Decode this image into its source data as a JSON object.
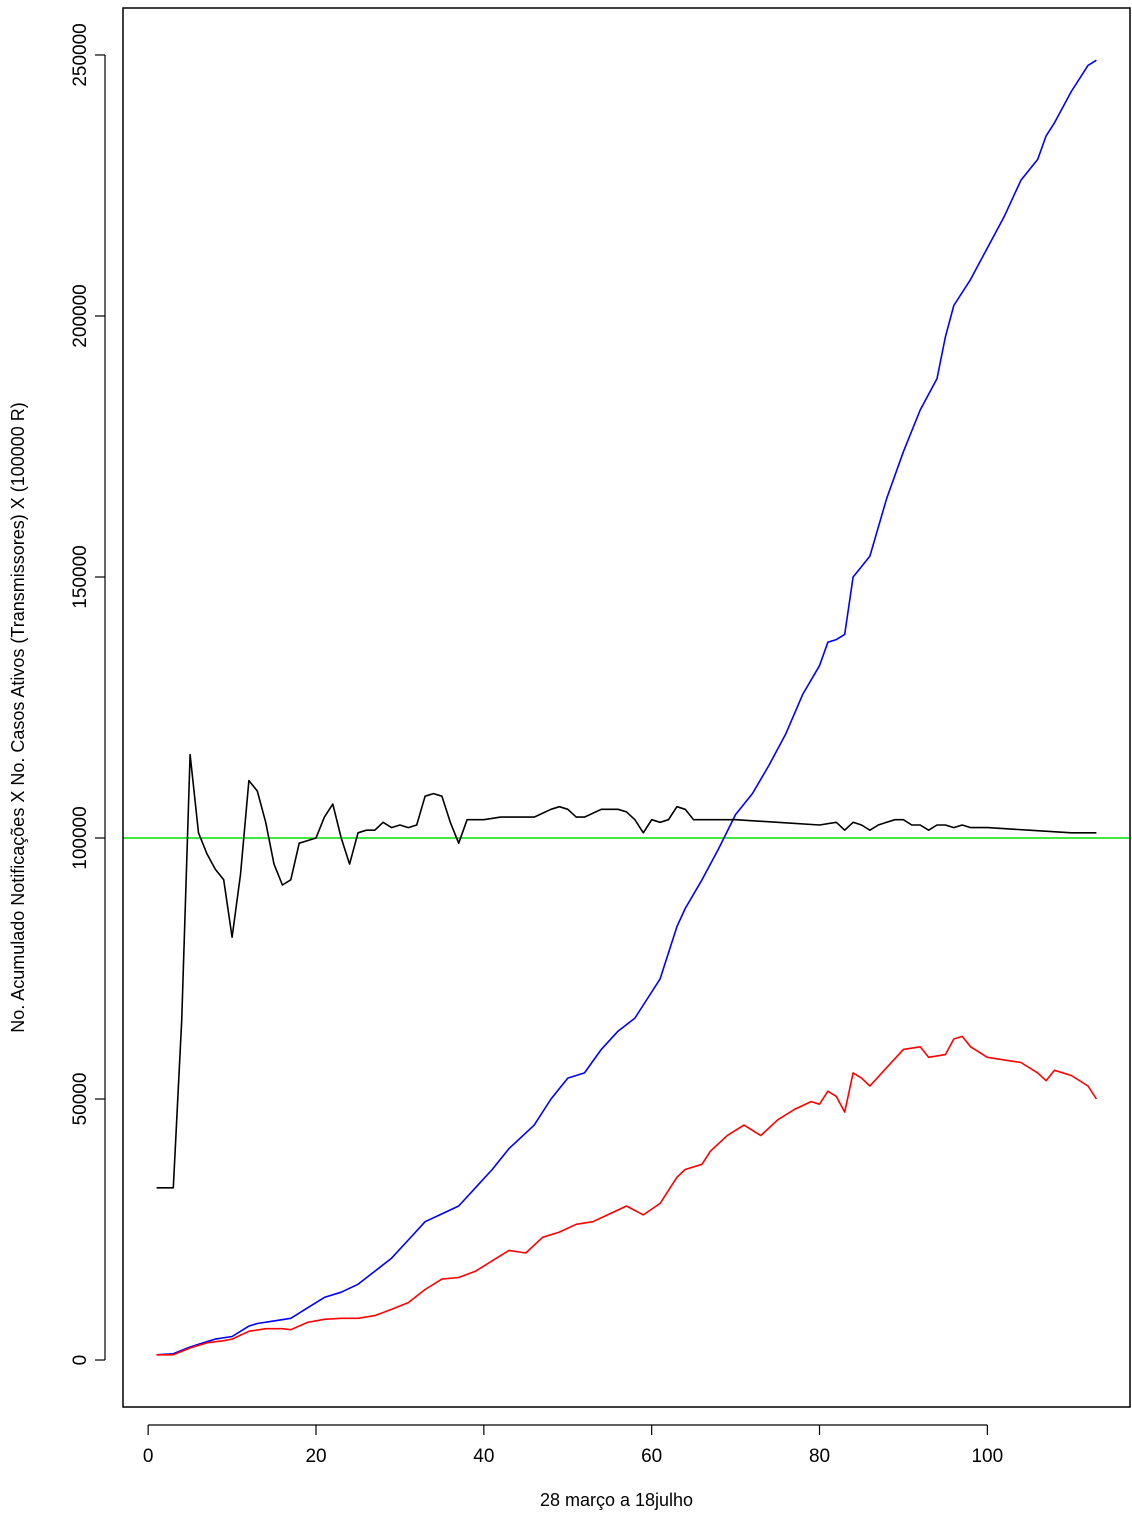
{
  "chart_data": {
    "type": "line",
    "title": "",
    "xlabel": "28 março a 18julho",
    "ylabel": "No. Acumulado Notificações X No. Casos Ativos (Transmissores) X (100000  R)",
    "xlim": [
      -3,
      117
    ],
    "ylim": [
      -9000,
      259000
    ],
    "xticks": [
      0,
      20,
      40,
      60,
      80,
      100
    ],
    "yticks": [
      0,
      50000,
      100000,
      150000,
      200000,
      250000
    ],
    "reference_line": {
      "y": 100000,
      "color": "#00e000"
    },
    "series": [
      {
        "color": "#0000ff",
        "x": [
          1,
          3,
          5,
          7,
          8,
          10,
          12,
          13,
          15,
          17,
          19,
          21,
          23,
          25,
          27,
          29,
          31,
          33,
          35,
          37,
          39,
          41,
          43,
          45,
          46,
          48,
          50,
          52,
          54,
          56,
          58,
          59,
          61,
          63,
          64,
          66,
          68,
          70,
          72,
          74,
          76,
          78,
          80,
          81,
          82,
          83,
          84,
          85,
          86,
          88,
          90,
          92,
          94,
          95,
          96,
          98,
          99,
          100,
          102,
          104,
          106,
          107,
          108,
          110,
          112,
          113
        ],
        "values": [
          1000,
          1200,
          2500,
          3500,
          4000,
          4500,
          6500,
          7000,
          7500,
          8000,
          10000,
          12000,
          13000,
          14500,
          17000,
          19500,
          23000,
          26500,
          28000,
          29500,
          33000,
          36500,
          40500,
          43500,
          45000,
          50000,
          54000,
          55000,
          59500,
          63000,
          65500,
          68000,
          73000,
          83000,
          86500,
          92000,
          98000,
          104500,
          108500,
          114000,
          120000,
          127500,
          133000,
          137500,
          138000,
          139000,
          150000,
          152000,
          154000,
          165000,
          174000,
          182000,
          188000,
          196000,
          202000,
          207000,
          210000,
          213000,
          219000,
          226000,
          230000,
          234500,
          237000,
          243000,
          248000,
          249000
        ]
      },
      {
        "color": "#ff0000",
        "x": [
          1,
          3,
          5,
          7,
          9,
          10,
          12,
          14,
          16,
          17,
          19,
          21,
          23,
          25,
          27,
          29,
          31,
          33,
          35,
          37,
          39,
          41,
          43,
          45,
          47,
          49,
          51,
          53,
          55,
          57,
          59,
          61,
          63,
          64,
          66,
          67,
          69,
          71,
          73,
          75,
          77,
          79,
          80,
          81,
          82,
          83,
          84,
          85,
          86,
          88,
          90,
          92,
          93,
          95,
          96,
          97,
          98,
          100,
          102,
          104,
          106,
          107,
          108,
          110,
          112,
          113
        ],
        "values": [
          1000,
          1000,
          2300,
          3300,
          3700,
          4000,
          5500,
          6000,
          6000,
          5800,
          7200,
          7800,
          8000,
          8000,
          8500,
          9700,
          11000,
          13500,
          15500,
          15800,
          17000,
          19000,
          21000,
          20500,
          23500,
          24500,
          26000,
          26500,
          28000,
          29500,
          27800,
          30000,
          35000,
          36500,
          37500,
          40000,
          43000,
          45000,
          43000,
          46000,
          48000,
          49500,
          49000,
          51500,
          50500,
          47500,
          55000,
          54000,
          52500,
          56000,
          59500,
          60000,
          58000,
          58500,
          61500,
          62000,
          60000,
          58000,
          57500,
          57000,
          55000,
          53500,
          55500,
          54500,
          52500,
          50000
        ]
      },
      {
        "color": "#000000",
        "x": [
          1,
          2,
          3,
          4,
          5,
          6,
          7,
          8,
          9,
          10,
          11,
          12,
          13,
          14,
          15,
          16,
          17,
          18,
          19,
          20,
          21,
          22,
          23,
          24,
          25,
          26,
          27,
          28,
          29,
          30,
          31,
          32,
          33,
          34,
          35,
          36,
          37,
          38,
          40,
          42,
          44,
          46,
          48,
          49,
          50,
          51,
          52,
          54,
          56,
          57,
          58,
          59,
          60,
          61,
          62,
          63,
          64,
          65,
          67,
          70,
          75,
          80,
          82,
          83,
          84,
          85,
          86,
          87,
          88,
          89,
          90,
          91,
          92,
          93,
          94,
          95,
          96,
          97,
          98,
          100,
          105,
          110,
          113
        ],
        "values": [
          33000,
          33000,
          33000,
          65000,
          116000,
          101000,
          97000,
          94000,
          92000,
          81000,
          93000,
          111000,
          109000,
          103000,
          95000,
          91000,
          92000,
          99000,
          99500,
          100000,
          104000,
          106500,
          100000,
          95000,
          101000,
          101500,
          101500,
          103000,
          102000,
          102500,
          102000,
          102500,
          108000,
          108500,
          108000,
          103000,
          99000,
          103500,
          103500,
          104000,
          104000,
          104000,
          105500,
          106000,
          105500,
          104000,
          104000,
          105500,
          105500,
          105000,
          103500,
          101000,
          103500,
          103000,
          103500,
          106000,
          105500,
          103500,
          103500,
          103500,
          103000,
          102500,
          103000,
          101500,
          103000,
          102500,
          101500,
          102500,
          103000,
          103500,
          103500,
          102500,
          102500,
          101500,
          102500,
          102500,
          102000,
          102500,
          102000,
          102000,
          101500,
          101000,
          101000
        ]
      }
    ]
  }
}
